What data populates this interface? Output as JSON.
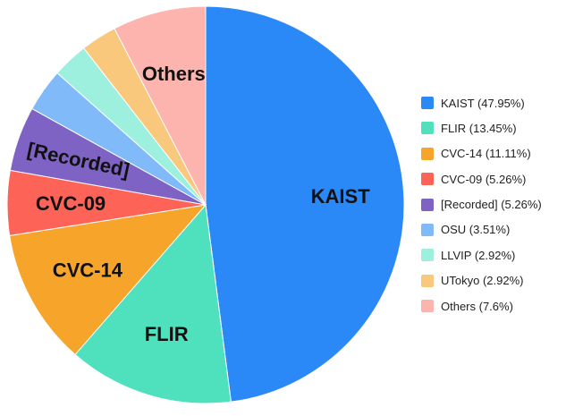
{
  "chart_data": {
    "type": "pie",
    "title": "",
    "start_angle_deg": 0,
    "direction": "clockwise",
    "legend_position": "right",
    "slices": [
      {
        "label": "KAIST",
        "value": 47.95,
        "legend": "KAIST (47.95%)",
        "color": "#2b88f7",
        "show_label": true
      },
      {
        "label": "FLIR",
        "value": 13.45,
        "legend": "FLIR (13.45%)",
        "color": "#4fe0be",
        "show_label": true
      },
      {
        "label": "CVC-14",
        "value": 11.11,
        "legend": "CVC-14 (11.11%)",
        "color": "#f6a52a",
        "show_label": true
      },
      {
        "label": "CVC-09",
        "value": 5.26,
        "legend": "CVC-09 (5.26%)",
        "color": "#fd6356",
        "show_label": true
      },
      {
        "label": "[Recorded]",
        "value": 5.26,
        "legend": "[Recorded] (5.26%)",
        "color": "#7e62c4",
        "show_label": true
      },
      {
        "label": "OSU",
        "value": 3.51,
        "legend": "OSU (3.51%)",
        "color": "#81baf9",
        "show_label": false
      },
      {
        "label": "LLVIP",
        "value": 2.92,
        "legend": "LLVIP (2.92%)",
        "color": "#9cf0dd",
        "show_label": false
      },
      {
        "label": "UTokyo",
        "value": 2.92,
        "legend": "UTokyo (2.92%)",
        "color": "#f9c87d",
        "show_label": false
      },
      {
        "label": "Others",
        "value": 7.6,
        "legend": "Others (7.6%)",
        "color": "#fdb3ae",
        "show_label": true
      }
    ]
  }
}
